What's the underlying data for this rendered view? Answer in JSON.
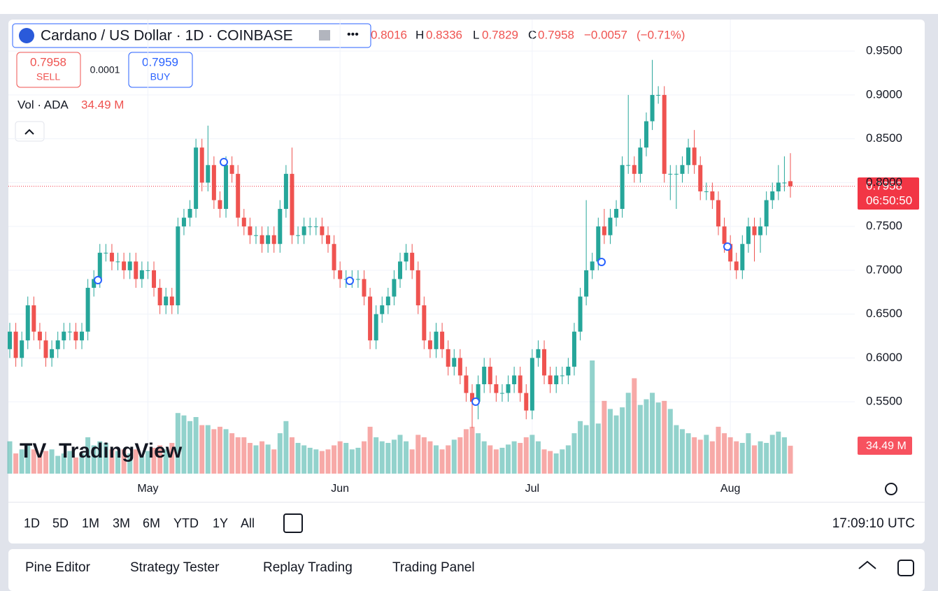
{
  "header": {
    "symbol": "Cardano / US Dollar · 1D · COINBASE",
    "h_label": "H",
    "l_label": "L",
    "c_label": "C",
    "change": "−0.0057",
    "change_pct": "(−0.71%)",
    "sell_label": "SELL",
    "buy_label": "BUY",
    "buy_price": 0.7959,
    "spread": 0.0001,
    "countdown": "06:50:50",
    "brand": "TradingView",
    "clock": "17:09:10 UTC"
  },
  "ranges": [
    "1D",
    "5D",
    "1M",
    "3M",
    "6M",
    "YTD",
    "1Y",
    "All"
  ],
  "tabs": [
    "Pine Editor",
    "Strategy Tester",
    "Replay Trading",
    "Trading Panel"
  ],
  "chart_data": {
    "type": "candlestick",
    "open": [
      0.61,
      0.63,
      0.6,
      0.62,
      0.66,
      0.63,
      0.62,
      0.6,
      0.61,
      0.62,
      0.63,
      0.63,
      0.62,
      0.63,
      0.68,
      0.69,
      0.72,
      0.72,
      0.71,
      0.71,
      0.7,
      0.71,
      0.69,
      0.7,
      0.7,
      0.68,
      0.66,
      0.67,
      0.66,
      0.75,
      0.76,
      0.77,
      0.84,
      0.8,
      0.82,
      0.78,
      0.77,
      0.82,
      0.81,
      0.76,
      0.75,
      0.74,
      0.74,
      0.73,
      0.74,
      0.73,
      0.77,
      0.81,
      0.74,
      0.74,
      0.75,
      0.75,
      0.75,
      0.74,
      0.73,
      0.7,
      0.69,
      0.69,
      0.69,
      0.69,
      0.67,
      0.62,
      0.65,
      0.66,
      0.67,
      0.69,
      0.71,
      0.72,
      0.7,
      0.66,
      0.62,
      0.61,
      0.63,
      0.61,
      0.59,
      0.6,
      0.58,
      0.56,
      0.55,
      0.57,
      0.59,
      0.57,
      0.56,
      0.56,
      0.57,
      0.58,
      0.56,
      0.54,
      0.6,
      0.61,
      0.58,
      0.57,
      0.58,
      0.58,
      0.59,
      0.63,
      0.67,
      0.7,
      0.71,
      0.75,
      0.74,
      0.76,
      0.77,
      0.82,
      0.82,
      0.81,
      0.84,
      0.87,
      0.9,
      0.9,
      0.81,
      0.81,
      0.81,
      0.82,
      0.84,
      0.82,
      0.79,
      0.79,
      0.78,
      0.75,
      0.73,
      0.71,
      0.7,
      0.73,
      0.75,
      0.74,
      0.75,
      0.78,
      0.79,
      0.8,
      0.8016
    ],
    "high": [
      0.64,
      0.64,
      0.63,
      0.67,
      0.67,
      0.64,
      0.63,
      0.62,
      0.63,
      0.64,
      0.64,
      0.64,
      0.64,
      0.69,
      0.7,
      0.73,
      0.73,
      0.73,
      0.72,
      0.72,
      0.72,
      0.72,
      0.71,
      0.71,
      0.71,
      0.69,
      0.68,
      0.68,
      0.76,
      0.77,
      0.78,
      0.85,
      0.85,
      0.865,
      0.83,
      0.79,
      0.83,
      0.83,
      0.82,
      0.77,
      0.76,
      0.75,
      0.75,
      0.75,
      0.75,
      0.78,
      0.82,
      0.84,
      0.75,
      0.76,
      0.76,
      0.76,
      0.76,
      0.75,
      0.74,
      0.71,
      0.7,
      0.7,
      0.7,
      0.7,
      0.68,
      0.66,
      0.67,
      0.68,
      0.7,
      0.72,
      0.73,
      0.73,
      0.71,
      0.67,
      0.63,
      0.64,
      0.64,
      0.62,
      0.61,
      0.61,
      0.59,
      0.57,
      0.58,
      0.6,
      0.6,
      0.58,
      0.57,
      0.58,
      0.59,
      0.59,
      0.57,
      0.61,
      0.62,
      0.62,
      0.59,
      0.59,
      0.59,
      0.6,
      0.64,
      0.68,
      0.78,
      0.72,
      0.76,
      0.77,
      0.77,
      0.78,
      0.83,
      0.9,
      0.83,
      0.85,
      0.88,
      0.94,
      0.91,
      0.91,
      0.82,
      0.82,
      0.83,
      0.85,
      0.86,
      0.83,
      0.8,
      0.8,
      0.79,
      0.76,
      0.74,
      0.72,
      0.74,
      0.76,
      0.76,
      0.76,
      0.79,
      0.8,
      0.82,
      0.83,
      0.8336
    ],
    "low": [
      0.6,
      0.59,
      0.59,
      0.61,
      0.62,
      0.61,
      0.59,
      0.59,
      0.6,
      0.61,
      0.62,
      0.61,
      0.61,
      0.62,
      0.67,
      0.68,
      0.71,
      0.7,
      0.7,
      0.69,
      0.69,
      0.68,
      0.68,
      0.69,
      0.67,
      0.65,
      0.65,
      0.65,
      0.65,
      0.74,
      0.75,
      0.76,
      0.79,
      0.79,
      0.77,
      0.76,
      0.76,
      0.8,
      0.75,
      0.74,
      0.73,
      0.73,
      0.72,
      0.72,
      0.72,
      0.72,
      0.76,
      0.73,
      0.73,
      0.73,
      0.74,
      0.74,
      0.73,
      0.72,
      0.69,
      0.68,
      0.68,
      0.68,
      0.68,
      0.66,
      0.61,
      0.61,
      0.64,
      0.65,
      0.66,
      0.68,
      0.7,
      0.69,
      0.65,
      0.61,
      0.6,
      0.6,
      0.6,
      0.58,
      0.58,
      0.57,
      0.55,
      0.52,
      0.53,
      0.56,
      0.56,
      0.55,
      0.55,
      0.55,
      0.56,
      0.55,
      0.53,
      0.53,
      0.59,
      0.57,
      0.56,
      0.56,
      0.57,
      0.57,
      0.58,
      0.62,
      0.66,
      0.69,
      0.7,
      0.73,
      0.73,
      0.75,
      0.76,
      0.81,
      0.8,
      0.8,
      0.83,
      0.86,
      0.89,
      0.8,
      0.78,
      0.77,
      0.8,
      0.81,
      0.81,
      0.78,
      0.78,
      0.77,
      0.74,
      0.72,
      0.7,
      0.69,
      0.69,
      0.72,
      0.71,
      0.72,
      0.74,
      0.77,
      0.78,
      0.79,
      0.7829
    ],
    "close": [
      0.63,
      0.6,
      0.62,
      0.66,
      0.63,
      0.62,
      0.6,
      0.61,
      0.62,
      0.63,
      0.63,
      0.62,
      0.63,
      0.68,
      0.69,
      0.72,
      0.72,
      0.71,
      0.71,
      0.7,
      0.71,
      0.69,
      0.7,
      0.7,
      0.68,
      0.66,
      0.67,
      0.66,
      0.75,
      0.76,
      0.77,
      0.84,
      0.8,
      0.82,
      0.78,
      0.77,
      0.82,
      0.81,
      0.76,
      0.75,
      0.74,
      0.74,
      0.73,
      0.74,
      0.73,
      0.77,
      0.81,
      0.74,
      0.74,
      0.75,
      0.75,
      0.75,
      0.74,
      0.73,
      0.7,
      0.69,
      0.69,
      0.69,
      0.69,
      0.67,
      0.62,
      0.65,
      0.66,
      0.67,
      0.69,
      0.71,
      0.72,
      0.7,
      0.66,
      0.62,
      0.61,
      0.63,
      0.61,
      0.59,
      0.6,
      0.58,
      0.56,
      0.55,
      0.57,
      0.59,
      0.57,
      0.56,
      0.56,
      0.57,
      0.58,
      0.56,
      0.54,
      0.6,
      0.61,
      0.58,
      0.57,
      0.58,
      0.58,
      0.59,
      0.63,
      0.67,
      0.7,
      0.71,
      0.75,
      0.74,
      0.76,
      0.77,
      0.82,
      0.82,
      0.81,
      0.84,
      0.87,
      0.9,
      0.9,
      0.81,
      0.81,
      0.81,
      0.82,
      0.84,
      0.82,
      0.79,
      0.79,
      0.78,
      0.75,
      0.73,
      0.71,
      0.7,
      0.73,
      0.75,
      0.74,
      0.75,
      0.78,
      0.79,
      0.8,
      0.8,
      0.7958
    ],
    "volume": {
      "name": "Vol · ADA",
      "values": [
        40,
        25,
        30,
        35,
        30,
        25,
        28,
        30,
        22,
        25,
        28,
        20,
        25,
        45,
        35,
        40,
        38,
        30,
        28,
        30,
        25,
        30,
        22,
        28,
        32,
        35,
        30,
        38,
        75,
        72,
        65,
        70,
        60,
        60,
        55,
        58,
        55,
        50,
        45,
        45,
        38,
        35,
        40,
        36,
        30,
        50,
        65,
        45,
        38,
        35,
        32,
        30,
        28,
        30,
        35,
        40,
        38,
        30,
        32,
        40,
        58,
        45,
        40,
        38,
        42,
        48,
        40,
        30,
        48,
        45,
        40,
        35,
        30,
        35,
        42,
        45,
        55,
        58,
        50,
        40,
        35,
        30,
        32,
        36,
        40,
        38,
        45,
        48,
        40,
        30,
        28,
        25,
        30,
        35,
        50,
        65,
        60,
        140,
        62,
        90,
        80,
        72,
        82,
        100,
        118,
        85,
        92,
        100,
        88,
        90,
        80,
        60,
        55,
        50,
        45,
        42,
        48,
        40,
        58,
        50,
        45,
        40,
        38,
        50,
        35,
        40,
        38,
        48,
        52,
        45,
        34.49
      ],
      "value_labels": {
        "130": "34.49 M"
      }
    },
    "ylim": [
      0.468,
      0.986
    ],
    "yticks": [
      {
        "value": 0.55,
        "label": "0.5500"
      },
      {
        "value": 0.6,
        "label": "0.6000"
      },
      {
        "value": 0.65,
        "label": "0.6500"
      },
      {
        "value": 0.7,
        "label": "0.7000"
      },
      {
        "value": 0.75,
        "label": "0.7500"
      },
      {
        "value": 0.8,
        "label": "0.8000"
      },
      {
        "value": 0.85,
        "label": "0.8500"
      },
      {
        "value": 0.9,
        "label": "0.9000"
      },
      {
        "value": 0.95,
        "label": "0.9500"
      }
    ],
    "xticks": [
      {
        "value": 23,
        "label": "May"
      },
      {
        "value": 55,
        "label": "Jun"
      },
      {
        "value": 87,
        "label": "Jul"
      },
      {
        "value": 120,
        "label": "Aug"
      }
    ],
    "up_color": "#26a69a",
    "down_color": "#ef5350",
    "grid": true
  }
}
